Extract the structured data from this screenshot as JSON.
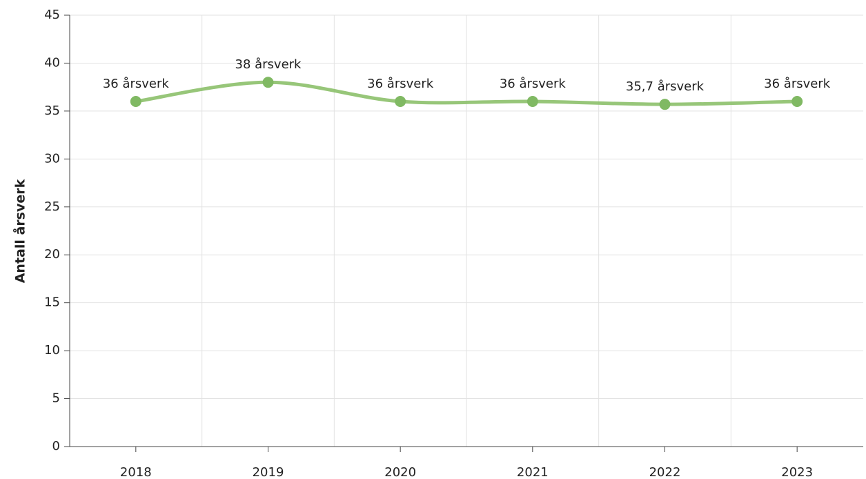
{
  "chart_data": {
    "type": "line",
    "y_label": "Antall årsverk",
    "categories": [
      "2018",
      "2019",
      "2020",
      "2021",
      "2022",
      "2023"
    ],
    "series": [
      {
        "name": "Antall årsverk",
        "color": "#8cc06a",
        "values": [
          36,
          38,
          36,
          36,
          35.7,
          36
        ],
        "value_labels": [
          "36 årsverk",
          "38 årsverk",
          "36 årsverk",
          "36 årsverk",
          "35,7 årsverk",
          "36 årsverk"
        ]
      }
    ],
    "ylim": [
      0,
      45
    ],
    "yticks": [
      0,
      5,
      10,
      15,
      20,
      25,
      30,
      35,
      40,
      45
    ],
    "grid": true
  }
}
